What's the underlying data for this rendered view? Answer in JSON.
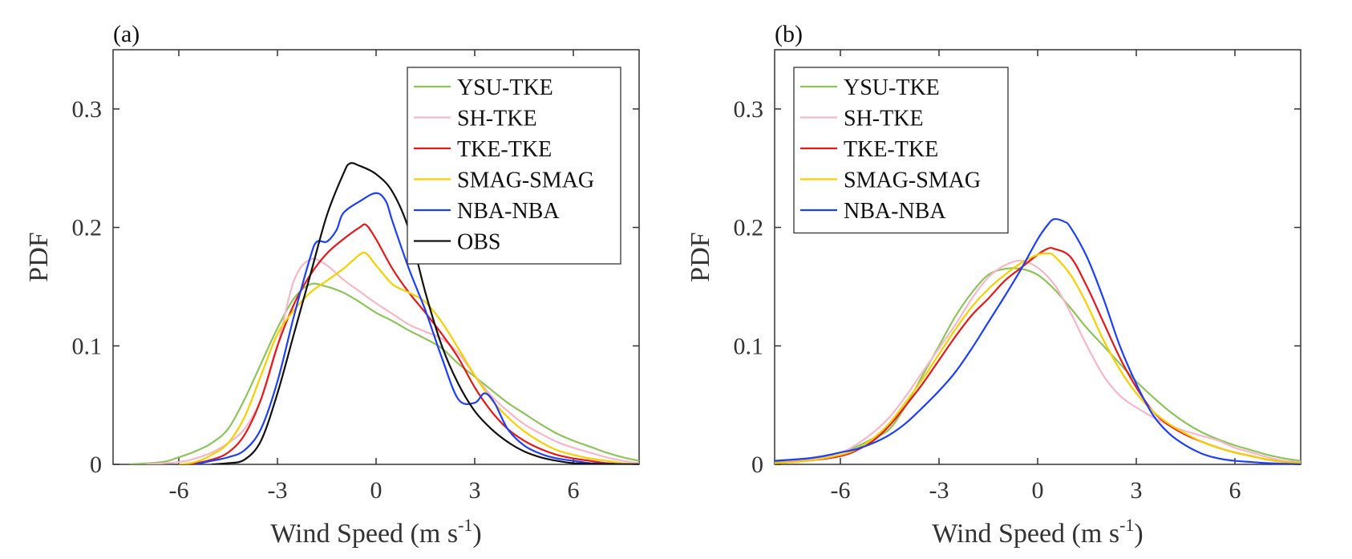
{
  "chart_data": [
    {
      "type": "line",
      "panel_label": "(a)",
      "xlabel": "Wind Speed (m s",
      "xlabel_sup": "-1",
      "xlabel_tail": ")",
      "ylabel": "PDF",
      "xlim": [
        -8,
        8
      ],
      "ylim": [
        0,
        0.35
      ],
      "xticks": [
        -6,
        -3,
        0,
        3,
        6
      ],
      "xtick_labels": [
        "-6",
        "-3",
        "0",
        "3",
        "6"
      ],
      "yticks": [
        0,
        0.1,
        0.2,
        0.3
      ],
      "ytick_labels": [
        "0",
        "0.1",
        "0.2",
        "0.3"
      ],
      "legend_position": "top-right",
      "series": [
        {
          "name": "YSU-TKE",
          "color": "#8fc35e",
          "x": [
            -7.5,
            -6.5,
            -6,
            -5.5,
            -5,
            -4.5,
            -4,
            -3.5,
            -3,
            -2.5,
            -2,
            -1.5,
            -1,
            -0.5,
            0,
            0.5,
            1,
            1.5,
            2,
            2.5,
            3,
            3.5,
            4,
            4.5,
            5,
            5.5,
            6,
            6.5,
            7,
            7.5,
            8
          ],
          "y": [
            0,
            0.002,
            0.006,
            0.011,
            0.018,
            0.03,
            0.055,
            0.085,
            0.115,
            0.14,
            0.152,
            0.15,
            0.145,
            0.137,
            0.128,
            0.121,
            0.113,
            0.106,
            0.098,
            0.085,
            0.074,
            0.063,
            0.052,
            0.043,
            0.034,
            0.026,
            0.02,
            0.015,
            0.01,
            0.006,
            0.003
          ]
        },
        {
          "name": "SH-TKE",
          "color": "#f4b8c8",
          "x": [
            -7,
            -6,
            -5.5,
            -5,
            -4.5,
            -4,
            -3.5,
            -3,
            -2.5,
            -2,
            -1.5,
            -1,
            -0.5,
            0,
            0.5,
            1,
            1.5,
            2,
            2.5,
            3,
            3.5,
            4,
            4.5,
            5,
            5.5,
            6,
            6.5,
            7,
            7.5,
            8
          ],
          "y": [
            0,
            0.002,
            0.005,
            0.01,
            0.018,
            0.03,
            0.055,
            0.1,
            0.155,
            0.173,
            0.168,
            0.156,
            0.146,
            0.136,
            0.127,
            0.118,
            0.112,
            0.106,
            0.094,
            0.075,
            0.058,
            0.045,
            0.034,
            0.026,
            0.019,
            0.014,
            0.01,
            0.006,
            0.003,
            0.001
          ]
        },
        {
          "name": "TKE-TKE",
          "color": "#e31a1c",
          "x": [
            -6,
            -5.5,
            -5,
            -4.5,
            -4,
            -3.5,
            -3,
            -2.5,
            -2,
            -1.5,
            -1,
            -0.5,
            -0.3,
            0,
            0.5,
            1,
            1.5,
            2,
            2.5,
            3,
            3.5,
            4,
            4.5,
            5,
            5.5,
            6,
            6.5,
            7,
            7.5,
            8
          ],
          "y": [
            0,
            0.001,
            0.004,
            0.01,
            0.025,
            0.055,
            0.1,
            0.135,
            0.16,
            0.178,
            0.19,
            0.2,
            0.202,
            0.19,
            0.165,
            0.145,
            0.128,
            0.11,
            0.09,
            0.065,
            0.045,
            0.03,
            0.02,
            0.013,
            0.008,
            0.005,
            0.003,
            0.001,
            0.0005,
            0
          ]
        },
        {
          "name": "SMAG-SMAG",
          "color": "#f5d000",
          "x": [
            -6,
            -5.5,
            -5,
            -4.5,
            -4,
            -3.5,
            -3,
            -2.5,
            -2,
            -1.5,
            -1,
            -0.5,
            -0.3,
            0,
            0.5,
            1,
            1.5,
            2,
            2.5,
            3,
            3.5,
            4,
            4.5,
            5,
            5.5,
            6,
            6.5,
            7,
            7.5,
            8
          ],
          "y": [
            0,
            0.002,
            0.008,
            0.018,
            0.04,
            0.075,
            0.11,
            0.13,
            0.145,
            0.155,
            0.165,
            0.177,
            0.178,
            0.168,
            0.152,
            0.145,
            0.137,
            0.12,
            0.098,
            0.075,
            0.055,
            0.04,
            0.028,
            0.019,
            0.012,
            0.008,
            0.005,
            0.003,
            0.001,
            0
          ]
        },
        {
          "name": "NBA-NBA",
          "color": "#1f3ff5",
          "x": [
            -5.5,
            -5,
            -4.5,
            -4,
            -3.5,
            -3,
            -2.5,
            -2,
            -1.8,
            -1.5,
            -1.2,
            -1,
            -0.5,
            0,
            0.3,
            0.5,
            1,
            1.5,
            2,
            2.5,
            3,
            3.3,
            3.6,
            4,
            4.5,
            5,
            5.5,
            6,
            6.5,
            7,
            7.5,
            8
          ],
          "y": [
            0,
            0.003,
            0.006,
            0.012,
            0.03,
            0.07,
            0.125,
            0.175,
            0.188,
            0.188,
            0.198,
            0.212,
            0.222,
            0.229,
            0.222,
            0.205,
            0.165,
            0.13,
            0.09,
            0.055,
            0.052,
            0.06,
            0.052,
            0.03,
            0.016,
            0.009,
            0.005,
            0.003,
            0.001,
            0.0005,
            0.0002,
            0
          ]
        },
        {
          "name": "OBS",
          "color": "#111111",
          "x": [
            -5,
            -4.5,
            -4,
            -3.5,
            -3,
            -2.5,
            -2,
            -1.5,
            -1,
            -0.8,
            -0.5,
            0,
            0.5,
            1,
            1.5,
            2,
            2.5,
            3,
            3.5,
            4,
            4.5,
            5,
            5.5,
            6,
            6.5,
            7,
            7.5,
            8
          ],
          "y": [
            0,
            0.001,
            0.004,
            0.02,
            0.06,
            0.11,
            0.16,
            0.21,
            0.245,
            0.254,
            0.252,
            0.245,
            0.23,
            0.198,
            0.145,
            0.1,
            0.068,
            0.045,
            0.03,
            0.019,
            0.011,
            0.006,
            0.003,
            0.001,
            0.0005,
            0.0002,
            0,
            0
          ]
        }
      ]
    },
    {
      "type": "line",
      "panel_label": "(b)",
      "xlabel": "Wind Speed (m s",
      "xlabel_sup": "-1",
      "xlabel_tail": ")",
      "ylabel": "PDF",
      "xlim": [
        -8,
        8
      ],
      "ylim": [
        0,
        0.35
      ],
      "xticks": [
        -6,
        -3,
        0,
        3,
        6
      ],
      "xtick_labels": [
        "-6",
        "-3",
        "0",
        "3",
        "6"
      ],
      "yticks": [
        0,
        0.1,
        0.2,
        0.3
      ],
      "ytick_labels": [
        "0",
        "0.1",
        "0.2",
        "0.3"
      ],
      "legend_position": "top-left",
      "series": [
        {
          "name": "YSU-TKE",
          "color": "#8fc35e",
          "x": [
            -8,
            -7,
            -6,
            -5.5,
            -5,
            -4.5,
            -4,
            -3.5,
            -3,
            -2.5,
            -2,
            -1.5,
            -1,
            -0.5,
            0,
            0.5,
            1,
            1.5,
            2,
            2.5,
            3,
            3.5,
            4,
            4.5,
            5,
            5.5,
            6,
            6.5,
            7,
            7.5,
            8
          ],
          "y": [
            0.002,
            0.005,
            0.01,
            0.015,
            0.022,
            0.03,
            0.05,
            0.075,
            0.1,
            0.125,
            0.145,
            0.16,
            0.165,
            0.165,
            0.16,
            0.148,
            0.132,
            0.115,
            0.1,
            0.085,
            0.07,
            0.057,
            0.045,
            0.035,
            0.027,
            0.021,
            0.016,
            0.012,
            0.008,
            0.005,
            0.003
          ]
        },
        {
          "name": "SH-TKE",
          "color": "#f4b8c8",
          "x": [
            -8,
            -7,
            -6,
            -5.5,
            -5,
            -4.5,
            -4,
            -3.5,
            -3,
            -2.5,
            -2,
            -1.5,
            -1,
            -0.5,
            0,
            0.5,
            1,
            1.5,
            2,
            2.5,
            3,
            3.5,
            4,
            4.5,
            5,
            5.5,
            6,
            6.5,
            7,
            7.5,
            8
          ],
          "y": [
            0.001,
            0.004,
            0.01,
            0.017,
            0.027,
            0.04,
            0.058,
            0.078,
            0.098,
            0.118,
            0.14,
            0.158,
            0.168,
            0.172,
            0.166,
            0.152,
            0.128,
            0.1,
            0.075,
            0.058,
            0.048,
            0.04,
            0.033,
            0.028,
            0.024,
            0.02,
            0.014,
            0.01,
            0.006,
            0.003,
            0.002
          ]
        },
        {
          "name": "TKE-TKE",
          "color": "#e31a1c",
          "x": [
            -8,
            -7,
            -6,
            -5.5,
            -5,
            -4.5,
            -4,
            -3.5,
            -3,
            -2.5,
            -2,
            -1.5,
            -1,
            -0.5,
            0,
            0.3,
            0.5,
            1,
            1.5,
            2,
            2.5,
            3,
            3.5,
            4,
            4.5,
            5,
            5.5,
            6,
            6.5,
            7,
            7.5,
            8
          ],
          "y": [
            0.001,
            0.003,
            0.007,
            0.012,
            0.02,
            0.033,
            0.05,
            0.068,
            0.088,
            0.108,
            0.126,
            0.14,
            0.155,
            0.166,
            0.177,
            0.182,
            0.182,
            0.175,
            0.15,
            0.12,
            0.09,
            0.065,
            0.045,
            0.033,
            0.025,
            0.019,
            0.014,
            0.01,
            0.007,
            0.004,
            0.002,
            0.001
          ]
        },
        {
          "name": "SMAG-SMAG",
          "color": "#f5d000",
          "x": [
            -8,
            -7,
            -6,
            -5.5,
            -5,
            -4.5,
            -4,
            -3.5,
            -3,
            -2.5,
            -2,
            -1.5,
            -1,
            -0.5,
            0,
            0.3,
            0.5,
            1,
            1.5,
            2,
            2.5,
            3,
            3.5,
            4,
            4.5,
            5,
            5.5,
            6,
            6.5,
            7,
            7.5,
            8
          ],
          "y": [
            0.001,
            0.003,
            0.008,
            0.013,
            0.022,
            0.035,
            0.053,
            0.072,
            0.093,
            0.114,
            0.133,
            0.148,
            0.16,
            0.17,
            0.177,
            0.178,
            0.176,
            0.16,
            0.135,
            0.105,
            0.08,
            0.06,
            0.045,
            0.034,
            0.026,
            0.019,
            0.014,
            0.01,
            0.007,
            0.004,
            0.002,
            0.001
          ]
        },
        {
          "name": "NBA-NBA",
          "color": "#1f3ff5",
          "x": [
            -8,
            -7,
            -6.5,
            -6,
            -5.5,
            -5,
            -4.5,
            -4,
            -3.5,
            -3,
            -2.5,
            -2,
            -1.5,
            -1,
            -0.5,
            0,
            0.3,
            0.5,
            0.8,
            1,
            1.5,
            2,
            2.5,
            3,
            3.5,
            4,
            4.5,
            5,
            5.5,
            6,
            6.5,
            7,
            7.5,
            8
          ],
          "y": [
            0.003,
            0.005,
            0.007,
            0.01,
            0.013,
            0.018,
            0.025,
            0.035,
            0.048,
            0.062,
            0.078,
            0.098,
            0.12,
            0.142,
            0.165,
            0.19,
            0.202,
            0.207,
            0.205,
            0.2,
            0.175,
            0.14,
            0.1,
            0.068,
            0.042,
            0.026,
            0.016,
            0.009,
            0.005,
            0.003,
            0.002,
            0.001,
            0.0005,
            0
          ]
        }
      ]
    }
  ]
}
